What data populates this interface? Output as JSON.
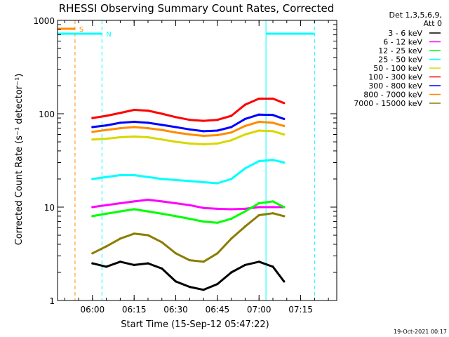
{
  "chart_data": {
    "type": "line",
    "title": "RHESSI Observing Summary Count Rates, Corrected",
    "xlabel": "Start Time (15-Sep-12 05:47:22)",
    "ylabel": "Corrected Count Rate (s⁻¹ detector⁻¹)",
    "yscale": "log",
    "ylim": [
      1,
      1000
    ],
    "xlim_minutes_after_start": [
      0,
      100.6
    ],
    "x_tick_labels": [
      "06:00",
      "06:15",
      "06:30",
      "06:45",
      "07:00",
      "07:15"
    ],
    "x_tick_minutes": [
      12.6,
      27.6,
      42.6,
      57.6,
      72.6,
      87.6
    ],
    "y_tick_labels": [
      "1",
      "10",
      "100",
      "1000"
    ],
    "y_tick_values": [
      1,
      10,
      100,
      1000
    ],
    "legend_header": [
      "Det 1,3,5,6,9,",
      "Att 0"
    ],
    "legend_position": "right",
    "timestamp": "19-Oct-2021 00:17",
    "x_minutes": [
      12.6,
      17.6,
      22.6,
      27.6,
      32.6,
      37.6,
      42.6,
      47.6,
      52.6,
      57.6,
      62.6,
      67.6,
      72.6,
      77.6,
      81.6
    ],
    "series": [
      {
        "name": "3 - 6 keV",
        "color": "#000000",
        "values": [
          2.5,
          2.3,
          2.6,
          2.4,
          2.5,
          2.2,
          1.6,
          1.4,
          1.3,
          1.5,
          2.0,
          2.4,
          2.6,
          2.3,
          1.6
        ]
      },
      {
        "name": "6 - 12 keV",
        "color": "#ff00ff",
        "values": [
          10,
          10.5,
          11,
          11.5,
          12,
          11.5,
          11,
          10.5,
          9.8,
          9.6,
          9.5,
          9.6,
          10,
          10,
          10
        ]
      },
      {
        "name": "12 - 25 keV",
        "color": "#00ff00",
        "values": [
          8,
          8.5,
          9,
          9.5,
          9,
          8.5,
          8,
          7.5,
          7,
          6.8,
          7.5,
          9,
          11,
          11.5,
          10
        ]
      },
      {
        "name": "25 - 50 keV",
        "color": "#00ffff",
        "values": [
          20,
          21,
          22,
          22,
          21,
          20,
          19.5,
          19,
          18.5,
          18,
          20,
          26,
          31,
          32,
          30
        ]
      },
      {
        "name": "50 - 100 keV",
        "color": "#d8d800",
        "values": [
          53,
          54,
          56,
          57,
          56,
          53,
          50,
          48,
          47,
          48,
          52,
          60,
          66,
          65,
          60
        ]
      },
      {
        "name": "100 - 300 keV",
        "color": "#ff0000",
        "values": [
          90,
          95,
          102,
          110,
          108,
          100,
          92,
          86,
          84,
          86,
          95,
          125,
          145,
          145,
          130
        ]
      },
      {
        "name": "300 - 800 keV",
        "color": "#0000ff",
        "values": [
          72,
          75,
          80,
          82,
          80,
          76,
          72,
          68,
          65,
          66,
          72,
          88,
          98,
          97,
          88
        ]
      },
      {
        "name": "800 - 7000 keV",
        "color": "#ff8c00",
        "values": [
          64,
          67,
          70,
          72,
          70,
          67,
          63,
          60,
          58,
          59,
          63,
          74,
          82,
          80,
          74
        ]
      },
      {
        "name": "7000 - 15000 keV",
        "color": "#8b7d00",
        "values": [
          3.2,
          3.8,
          4.6,
          5.2,
          5.0,
          4.2,
          3.2,
          2.7,
          2.6,
          3.2,
          4.6,
          6.2,
          8.2,
          8.6,
          8.0
        ]
      }
    ],
    "annotations": [
      {
        "label": "S",
        "color": "#ff8c00",
        "minutes": 6.3,
        "marker": "bar+dashed-line"
      },
      {
        "label": "N",
        "color": "#00ffff",
        "minutes": 16.0,
        "marker": "bar+dashed-line"
      },
      {
        "label": "",
        "color": "#00ffff",
        "minutes": 75.1,
        "marker": "solid-line"
      },
      {
        "label": "",
        "color": "#00ffff",
        "minutes": 92.6,
        "marker": "dashed-line"
      }
    ]
  }
}
